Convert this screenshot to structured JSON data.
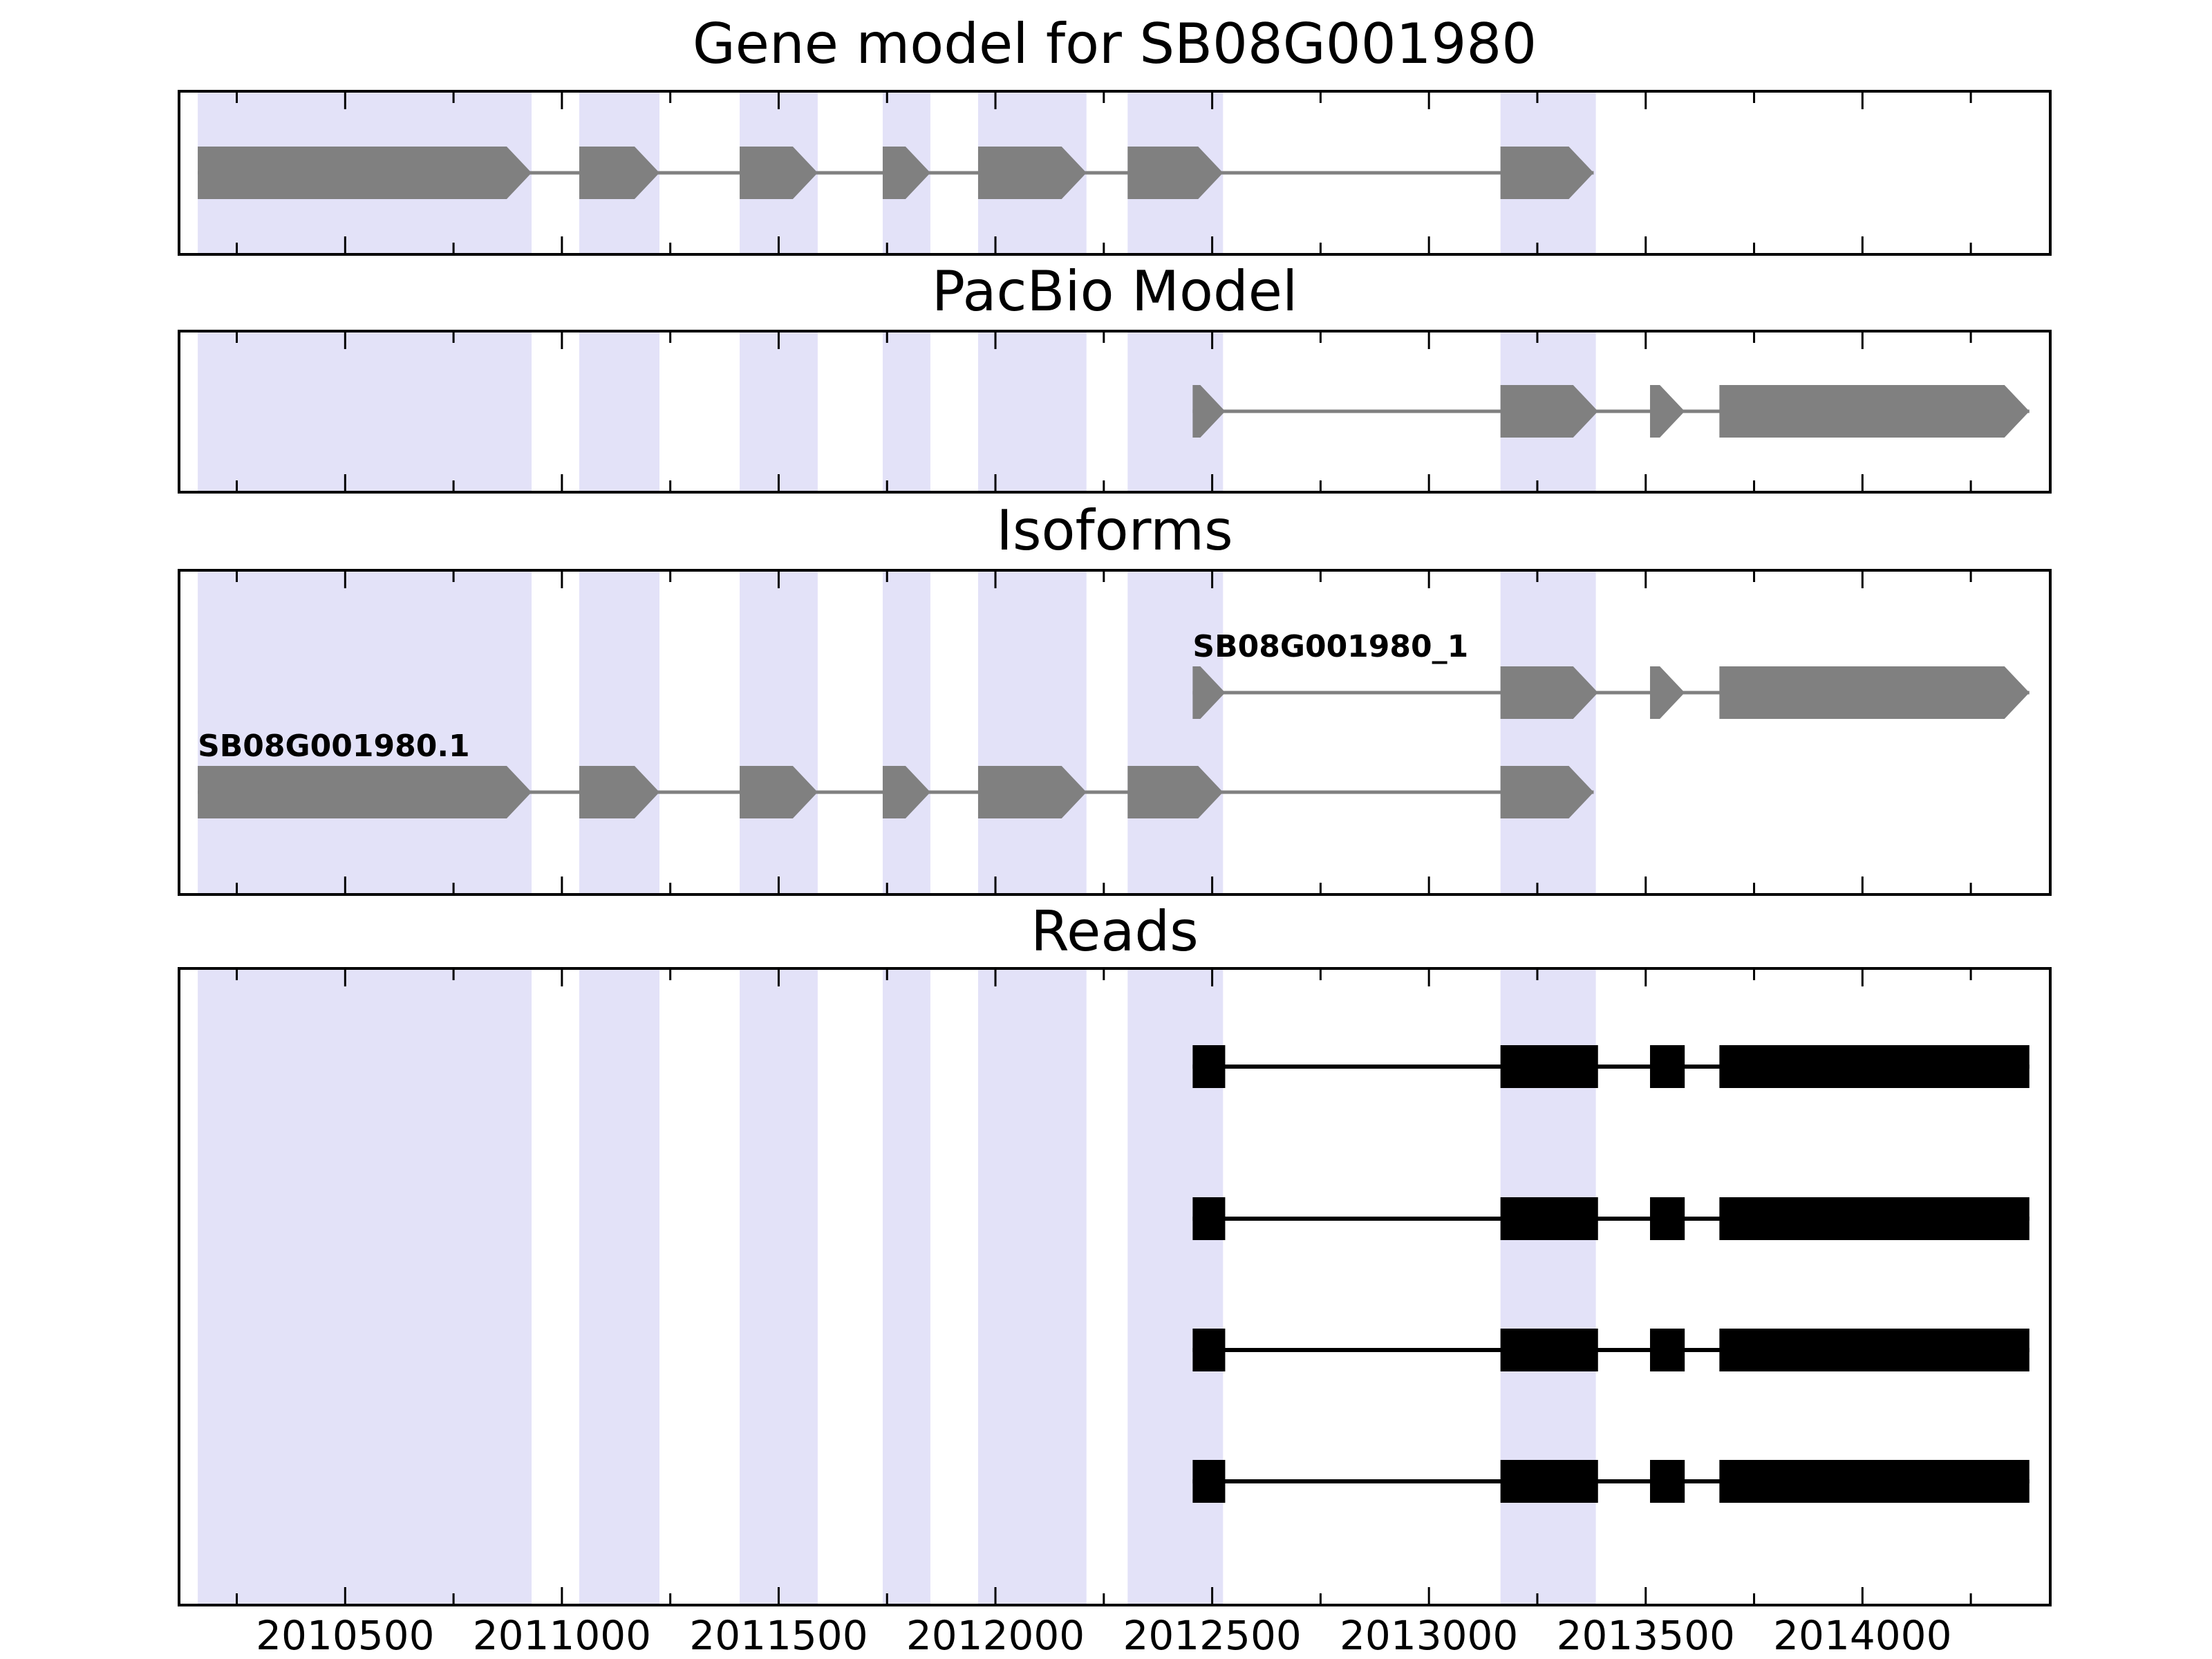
{
  "figure": {
    "background": "#ffffff",
    "band_color": "#e3e2f8",
    "exon_color": "#808080",
    "read_color": "#000000",
    "axis_color": "#000000"
  },
  "chart_data": {
    "type": "gene-model-tracks",
    "xlim": [
      2010120,
      2014430
    ],
    "x_ticks": [
      2010500,
      2011000,
      2011500,
      2012000,
      2012500,
      2013000,
      2013500,
      2014000
    ],
    "minor_tick_step": 250,
    "highlight_bands": [
      [
        2010160,
        2010930
      ],
      [
        2011040,
        2011225
      ],
      [
        2011410,
        2011590
      ],
      [
        2011740,
        2011850
      ],
      [
        2011960,
        2012210
      ],
      [
        2012305,
        2012525
      ],
      [
        2013165,
        2013385
      ]
    ],
    "panels": [
      {
        "id": "gene-model",
        "title": "Gene model for SB08G001980",
        "tracks": [
          {
            "style": "arrow",
            "color": "#808080",
            "label": null,
            "exons": [
              [
                2010160,
                2010930
              ],
              [
                2011040,
                2011225
              ],
              [
                2011410,
                2011590
              ],
              [
                2011740,
                2011850
              ],
              [
                2011960,
                2012210
              ],
              [
                2012305,
                2012525
              ],
              [
                2013165,
                2013380
              ]
            ]
          }
        ]
      },
      {
        "id": "pacbio",
        "title": "PacBio Model",
        "tracks": [
          {
            "style": "arrow",
            "color": "#808080",
            "label": null,
            "exons": [
              [
                2012455,
                2012530
              ],
              [
                2013165,
                2013390
              ],
              [
                2013510,
                2013590
              ],
              [
                2013670,
                2014385
              ]
            ]
          }
        ]
      },
      {
        "id": "isoforms",
        "title": "Isoforms",
        "tracks": [
          {
            "style": "arrow",
            "color": "#808080",
            "label": "SB08G001980_1",
            "exons": [
              [
                2012455,
                2012530
              ],
              [
                2013165,
                2013390
              ],
              [
                2013510,
                2013590
              ],
              [
                2013670,
                2014385
              ]
            ]
          },
          {
            "style": "arrow",
            "color": "#808080",
            "label": "SB08G001980.1",
            "exons": [
              [
                2010160,
                2010930
              ],
              [
                2011040,
                2011225
              ],
              [
                2011410,
                2011590
              ],
              [
                2011740,
                2011850
              ],
              [
                2011960,
                2012210
              ],
              [
                2012305,
                2012525
              ],
              [
                2013165,
                2013380
              ]
            ]
          }
        ]
      },
      {
        "id": "reads",
        "title": "Reads",
        "tracks": [
          {
            "style": "block",
            "color": "#000000",
            "label": null,
            "exons": [
              [
                2012455,
                2012530
              ],
              [
                2013165,
                2013390
              ],
              [
                2013510,
                2013590
              ],
              [
                2013670,
                2014385
              ]
            ]
          },
          {
            "style": "block",
            "color": "#000000",
            "label": null,
            "exons": [
              [
                2012455,
                2012530
              ],
              [
                2013165,
                2013390
              ],
              [
                2013510,
                2013590
              ],
              [
                2013670,
                2014385
              ]
            ]
          },
          {
            "style": "block",
            "color": "#000000",
            "label": null,
            "exons": [
              [
                2012455,
                2012530
              ],
              [
                2013165,
                2013390
              ],
              [
                2013510,
                2013590
              ],
              [
                2013670,
                2014385
              ]
            ]
          },
          {
            "style": "block",
            "color": "#000000",
            "label": null,
            "exons": [
              [
                2012455,
                2012530
              ],
              [
                2013165,
                2013390
              ],
              [
                2013510,
                2013590
              ],
              [
                2013670,
                2014385
              ]
            ]
          }
        ]
      }
    ]
  }
}
